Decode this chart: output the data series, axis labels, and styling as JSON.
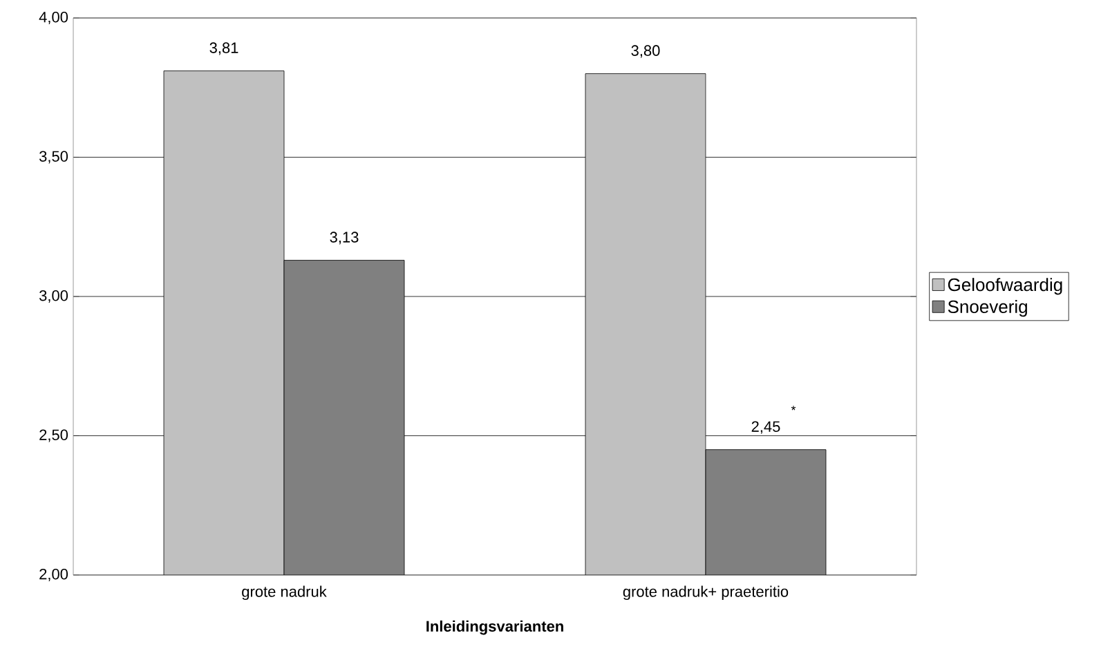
{
  "chart_data": {
    "type": "bar",
    "xlabel": "Inleidingsvarianten",
    "categories": [
      "grote nadruk",
      "grote nadruk+ praeteritio"
    ],
    "series": [
      {
        "name": "Geloofwaardig",
        "color": "#c0c0c0",
        "values": [
          3.81,
          3.8
        ],
        "value_labels": [
          "3,81",
          "3,80"
        ]
      },
      {
        "name": "Snoeverig",
        "color": "#808080",
        "values": [
          3.13,
          2.45
        ],
        "value_labels": [
          "3,13",
          "2,45"
        ]
      }
    ],
    "ylim": [
      2,
      4
    ],
    "yticks": [
      {
        "value": 2,
        "label": "2,00"
      },
      {
        "value": 2.5,
        "label": "2,50"
      },
      {
        "value": 3,
        "label": "3,00"
      },
      {
        "value": 3.5,
        "label": "3,50"
      },
      {
        "value": 4,
        "label": "4,00"
      }
    ],
    "grid": "y",
    "legend": "right",
    "annotations": [
      "*"
    ]
  }
}
